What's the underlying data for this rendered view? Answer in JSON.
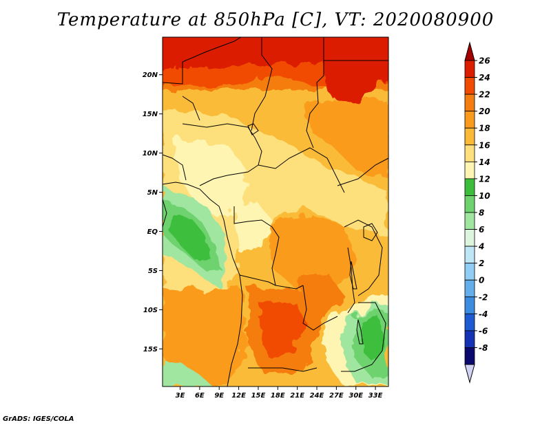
{
  "title": "Temperature at 850hPa [C], VT: 2020080900",
  "credit": "GrADS: IGES/COLA",
  "map": {
    "lat_labels": [
      {
        "text": "20N",
        "lat": 20
      },
      {
        "text": "15N",
        "lat": 15
      },
      {
        "text": "10N",
        "lat": 10
      },
      {
        "text": "5N",
        "lat": 5
      },
      {
        "text": "EQ",
        "lat": 0
      },
      {
        "text": "5S",
        "lat": -5
      },
      {
        "text": "10S",
        "lat": -10
      },
      {
        "text": "15S",
        "lat": -15
      }
    ],
    "lon_labels": [
      {
        "text": "3E",
        "lon": 3
      },
      {
        "text": "6E",
        "lon": 6
      },
      {
        "text": "9E",
        "lon": 9
      },
      {
        "text": "12E",
        "lon": 12
      },
      {
        "text": "15E",
        "lon": 15
      },
      {
        "text": "18E",
        "lon": 18
      },
      {
        "text": "21E",
        "lon": 21
      },
      {
        "text": "24E",
        "lon": 24
      },
      {
        "text": "27E",
        "lon": 27
      },
      {
        "text": "30E",
        "lon": 30
      },
      {
        "text": "33E",
        "lon": 33
      }
    ],
    "lon_range": [
      0.3,
      35
    ],
    "lat_range": [
      -19.8,
      24.8
    ]
  },
  "colorbar": {
    "levels": [
      "26",
      "24",
      "22",
      "20",
      "18",
      "16",
      "14",
      "12",
      "10",
      "8",
      "6",
      "4",
      "2",
      "0",
      "-2",
      "-4",
      "-6",
      "-8"
    ],
    "colors": [
      "#a50000",
      "#dc1e00",
      "#f04b00",
      "#f57d0f",
      "#fa9b1e",
      "#faba37",
      "#fde07c",
      "#fff5b2",
      "#3cbe3c",
      "#6ed26e",
      "#a0e6a0",
      "#dcf5dc",
      "#bfe6f5",
      "#91cdf5",
      "#64afeb",
      "#3c8ce1",
      "#1e5ad2",
      "#1432b4",
      "#0a0a6e",
      "#d2d2f5"
    ]
  }
}
